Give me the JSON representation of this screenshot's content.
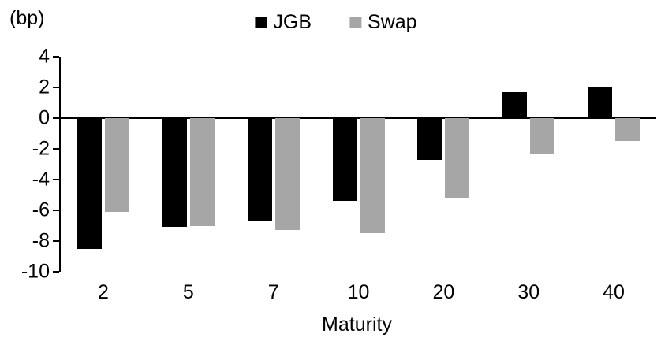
{
  "chart_data": {
    "type": "bar",
    "unit_label": "(bp)",
    "xlabel": "Maturity",
    "categories": [
      "2",
      "5",
      "7",
      "10",
      "20",
      "30",
      "40"
    ],
    "series": [
      {
        "name": "JGB",
        "color": "#000000",
        "values": [
          -8.5,
          -7.1,
          -6.7,
          -5.4,
          -2.7,
          1.7,
          2.0
        ]
      },
      {
        "name": "Swap",
        "color": "#a6a6a6",
        "values": [
          -6.1,
          -7.0,
          -7.3,
          -7.5,
          -5.2,
          -2.3,
          -1.5
        ]
      }
    ],
    "ylim": [
      -10,
      4
    ],
    "yticks": [
      4,
      2,
      0,
      -2,
      -4,
      -6,
      -8,
      -10
    ],
    "legend_position": "top",
    "grid": false
  }
}
